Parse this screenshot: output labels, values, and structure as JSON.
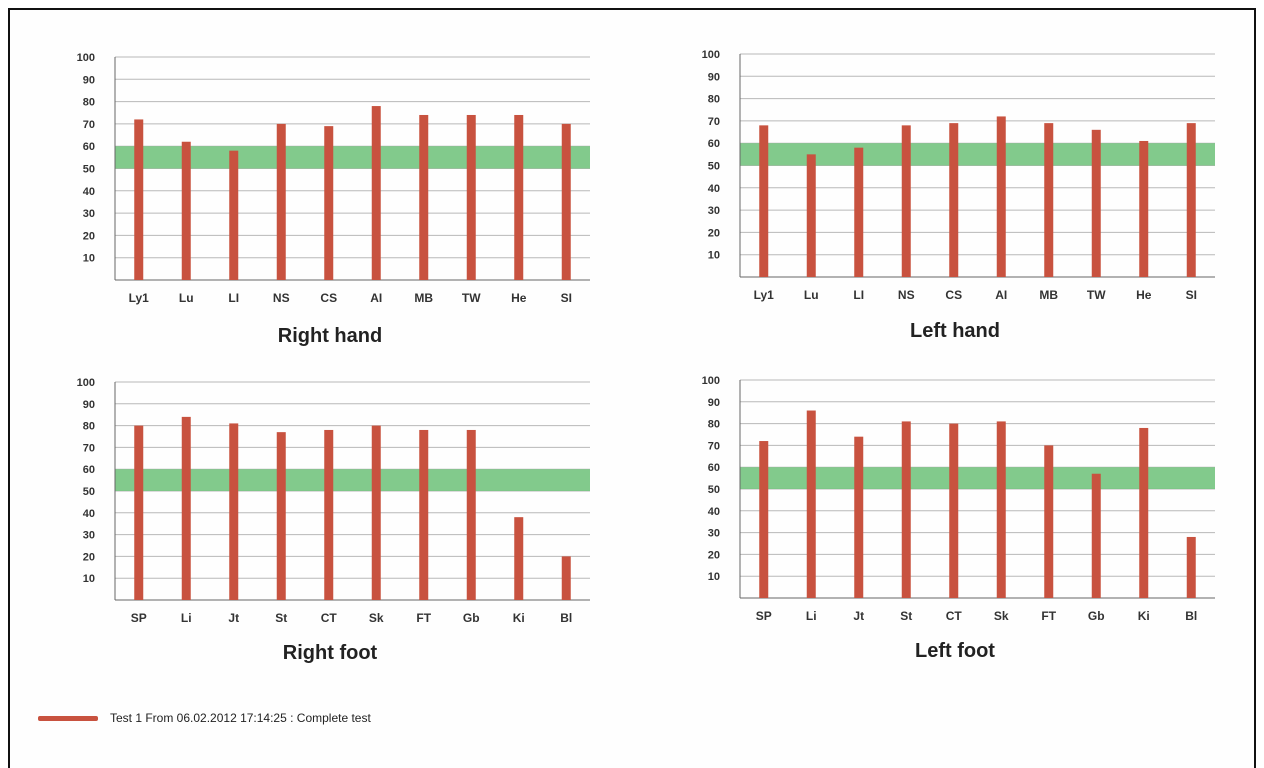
{
  "chart_data": [
    {
      "type": "bar",
      "title": "Right hand",
      "categories": [
        "Ly1",
        "Lu",
        "LI",
        "NS",
        "CS",
        "AI",
        "MB",
        "TW",
        "He",
        "SI"
      ],
      "series": [
        {
          "name": "Test 1 From 06.02.2012 17:14:25 :  Complete test",
          "values": [
            72,
            62,
            58,
            70,
            69,
            78,
            74,
            74,
            74,
            70
          ]
        }
      ],
      "band": [
        50,
        60
      ],
      "yticks": [
        10,
        20,
        30,
        40,
        50,
        60,
        70,
        80,
        90,
        100
      ],
      "ylim": [
        0,
        100
      ],
      "grid": true
    },
    {
      "type": "bar",
      "title": "Left hand",
      "categories": [
        "Ly1",
        "Lu",
        "LI",
        "NS",
        "CS",
        "AI",
        "MB",
        "TW",
        "He",
        "SI"
      ],
      "series": [
        {
          "name": "Test 1 From 06.02.2012 17:14:25 :  Complete test",
          "values": [
            68,
            55,
            58,
            68,
            69,
            72,
            69,
            66,
            61,
            69
          ]
        }
      ],
      "band": [
        50,
        60
      ],
      "yticks": [
        10,
        20,
        30,
        40,
        50,
        60,
        70,
        80,
        90,
        100
      ],
      "ylim": [
        0,
        100
      ],
      "grid": true
    },
    {
      "type": "bar",
      "title": "Right foot",
      "categories": [
        "SP",
        "Li",
        "Jt",
        "St",
        "CT",
        "Sk",
        "FT",
        "Gb",
        "Ki",
        "Bl"
      ],
      "series": [
        {
          "name": "Test 1 From 06.02.2012 17:14:25 :  Complete test",
          "values": [
            80,
            84,
            81,
            77,
            78,
            80,
            78,
            78,
            38,
            20
          ]
        }
      ],
      "band": [
        50,
        60
      ],
      "yticks": [
        10,
        20,
        30,
        40,
        50,
        60,
        70,
        80,
        90,
        100
      ],
      "ylim": [
        0,
        100
      ],
      "grid": true
    },
    {
      "type": "bar",
      "title": "Left foot",
      "categories": [
        "SP",
        "Li",
        "Jt",
        "St",
        "CT",
        "Sk",
        "FT",
        "Gb",
        "Ki",
        "Bl"
      ],
      "series": [
        {
          "name": "Test 1 From 06.02.2012 17:14:25 :  Complete test",
          "values": [
            72,
            86,
            74,
            81,
            80,
            81,
            70,
            57,
            78,
            28
          ]
        }
      ],
      "band": [
        50,
        60
      ],
      "yticks": [
        10,
        20,
        30,
        40,
        50,
        60,
        70,
        80,
        90,
        100
      ],
      "ylim": [
        0,
        100
      ],
      "grid": true
    }
  ],
  "colors": {
    "bar": "#c8523f",
    "band": "#74c47f",
    "grid": "#b8b8b8",
    "axis": "#666666"
  },
  "legend": {
    "label": "Test 1 From 06.02.2012 17:14:25 :  Complete test"
  }
}
